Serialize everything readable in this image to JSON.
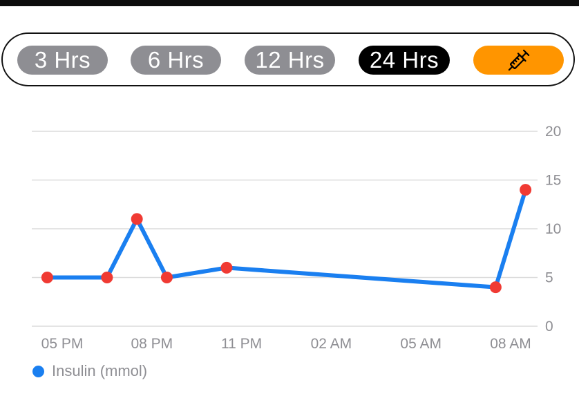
{
  "range_selector": {
    "options": [
      {
        "label": "3 Hrs",
        "active": false
      },
      {
        "label": "6 Hrs",
        "active": false
      },
      {
        "label": "12 Hrs",
        "active": false
      },
      {
        "label": "24 Hrs",
        "active": true
      }
    ],
    "insulin_button_icon": "syringe-icon"
  },
  "colors": {
    "inactive_pill": "#8e8e93",
    "active_pill": "#000000",
    "insulin_button": "#ff9500",
    "line": "#1a7ff0",
    "marker": "#f03a33",
    "grid": "#dcdcdc",
    "axis_text": "#8e8e93"
  },
  "chart_data": {
    "type": "line",
    "x_ticks": [
      "05 PM",
      "08 PM",
      "11 PM",
      "02 AM",
      "05 AM",
      "08 AM"
    ],
    "y_ticks": [
      "0",
      "5",
      "10",
      "15",
      "20"
    ],
    "ylim": [
      0,
      20
    ],
    "y_axis_side": "right",
    "grid": true,
    "legend_position": "bottom-left",
    "series": [
      {
        "name": "Insulin (mmol)",
        "points": [
          {
            "time": "04:30 PM",
            "value": 5
          },
          {
            "time": "06:30 PM",
            "value": 5
          },
          {
            "time": "07:30 PM",
            "value": 11
          },
          {
            "time": "08:30 PM",
            "value": 5
          },
          {
            "time": "10:30 PM",
            "value": 6
          },
          {
            "time": "07:30 AM",
            "value": 4
          },
          {
            "time": "08:30 AM",
            "value": 14
          }
        ]
      }
    ]
  }
}
